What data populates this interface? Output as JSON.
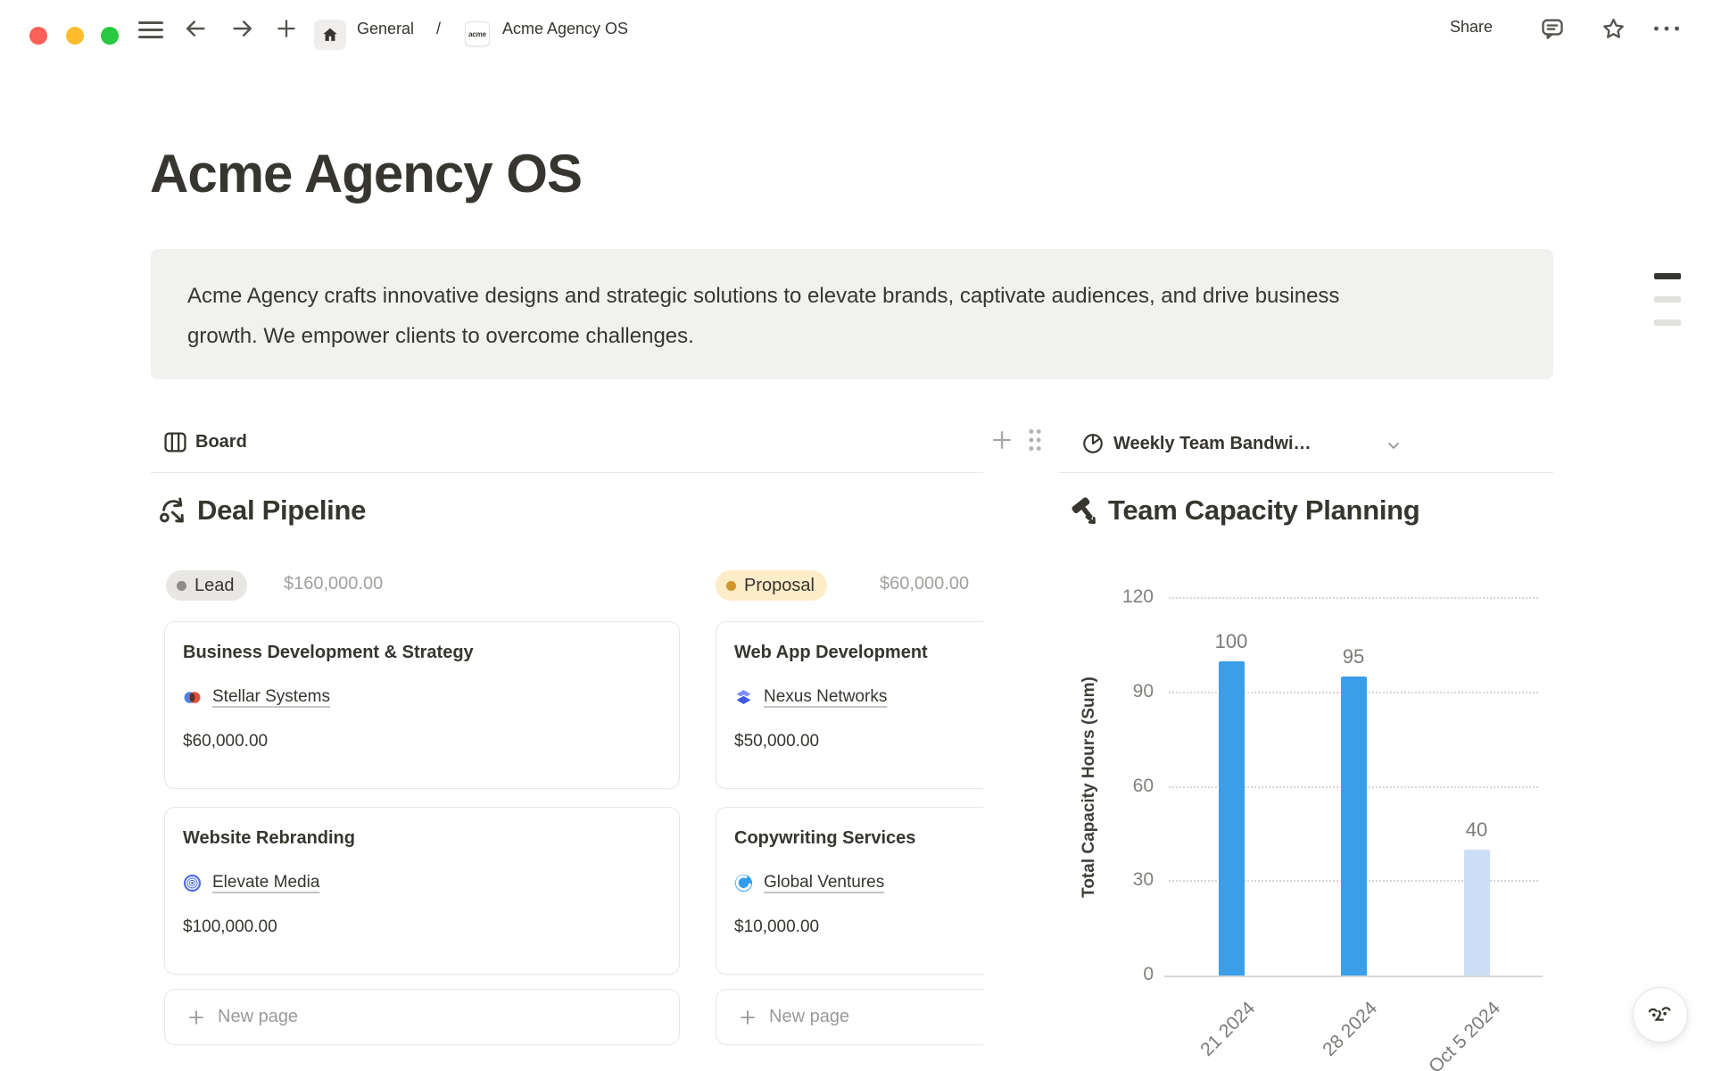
{
  "window": {
    "share_label": "Share",
    "breadcrumb": {
      "root": "General",
      "divider": "/",
      "page_icon_text": "acme",
      "page_title": "Acme Agency OS"
    }
  },
  "page": {
    "title": "Acme Agency OS",
    "callout_text": "Acme Agency crafts innovative designs and strategic solutions to elevate brands, captivate audiences, and drive business growth. We empower clients to overcome challenges."
  },
  "board_section": {
    "view_label": "Board",
    "heading": "Deal Pipeline",
    "columns": [
      {
        "status": "Lead",
        "amount": "$160,000.00",
        "pill_bg": "#e8e7e4",
        "dot_color": "#8f8e8b",
        "cards": [
          {
            "title": "Business Development & Strategy",
            "company": "Stellar Systems",
            "value": "$60,000.00",
            "logo_icon": "venn-logo"
          },
          {
            "title": "Website Rebranding",
            "company": "Elevate Media",
            "value": "$100,000.00",
            "logo_icon": "rings-logo"
          }
        ],
        "new_page_label": "New page"
      },
      {
        "status": "Proposal",
        "amount": "$60,000.00",
        "pill_bg": "#fdecc8",
        "dot_color": "#d1952e",
        "cards": [
          {
            "title": "Web App Development",
            "company": "Nexus Networks",
            "value": "$50,000.00",
            "logo_icon": "stack-logo"
          },
          {
            "title": "Copywriting Services",
            "company": "Global Ventures",
            "value": "$10,000.00",
            "logo_icon": "swoosh-logo"
          }
        ],
        "new_page_label": "New page"
      }
    ]
  },
  "chart_section": {
    "view_label": "Weekly Team Bandwi…",
    "heading": "Team Capacity Planning"
  },
  "chart_data": {
    "type": "bar",
    "title": "Team Capacity Planning",
    "ylabel": "Total Capacity Hours (Sum)",
    "categories": [
      "21 2024",
      "28 2024",
      "Oct 5 2024"
    ],
    "values": [
      100,
      95,
      40
    ],
    "bar_colors": [
      "#3b9ee8",
      "#3b9ee8",
      "#cbdef6"
    ],
    "value_label_color": "#7c7b77",
    "yticks": [
      0,
      30,
      60,
      90,
      120
    ],
    "ylim": [
      0,
      120
    ],
    "grid": "horizontal-dotted",
    "legend": "none"
  }
}
